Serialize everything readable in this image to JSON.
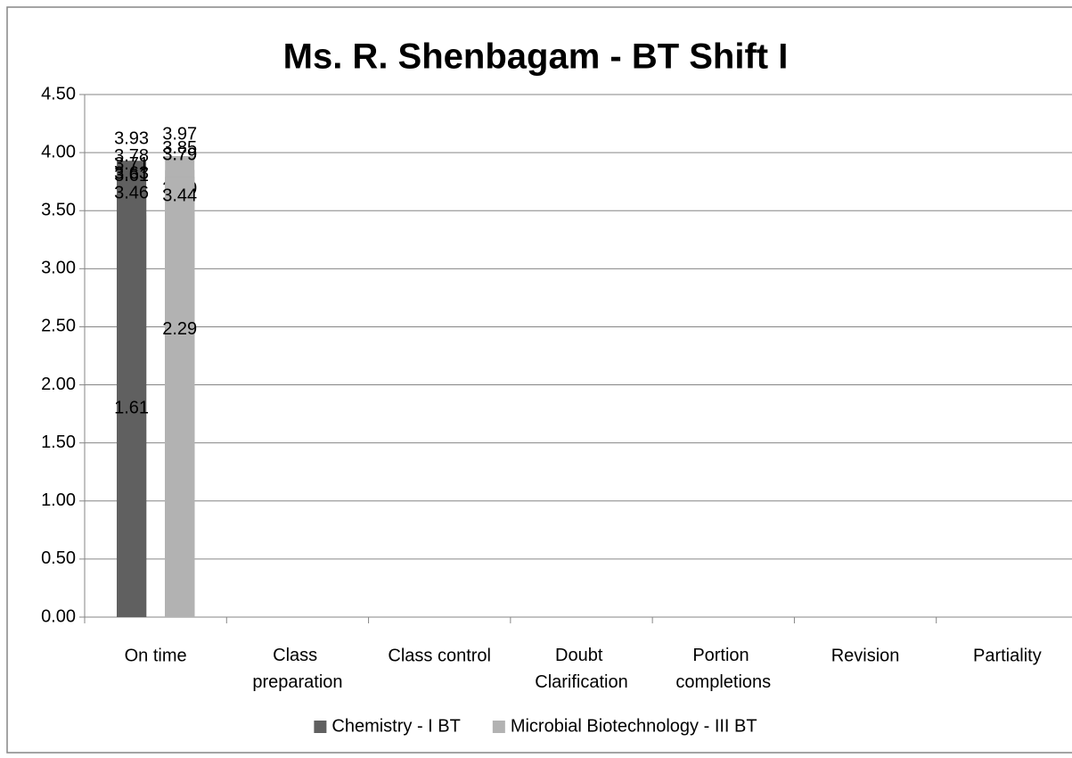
{
  "chart_data": {
    "type": "bar",
    "title": "Ms. R. Shenbagam - BT Shift I",
    "categories": [
      "On time",
      "Class preparation",
      "Class control",
      "Doubt Clarification",
      "Portion completions",
      "Revision",
      "Partiality"
    ],
    "series": [
      {
        "name": "Chemistry - I BT",
        "color": "#606060",
        "values": [
          3.93,
          3.71,
          3.78,
          3.61,
          3.63,
          3.46,
          1.61
        ],
        "value_labels": [
          "3.93",
          "3.71",
          "3.78",
          "3.61",
          "3.63",
          "3.46",
          "1.61"
        ]
      },
      {
        "name": "Microbial Biotechnology - III BT",
        "color": "#b2b2b2",
        "values": [
          3.97,
          3.85,
          3.5,
          3.79,
          3.79,
          3.44,
          2.29
        ],
        "value_labels": [
          "3.97",
          "3.85",
          "3.50",
          "3.79",
          "3.79",
          "3.44",
          "2.29"
        ]
      }
    ],
    "ylim": [
      0,
      4.5
    ],
    "yticks": [
      {
        "value": 0,
        "label": "0.00"
      },
      {
        "value": 0.5,
        "label": "0.50"
      },
      {
        "value": 1,
        "label": "1.00"
      },
      {
        "value": 1.5,
        "label": "1.50"
      },
      {
        "value": 2,
        "label": "2.00"
      },
      {
        "value": 2.5,
        "label": "2.50"
      },
      {
        "value": 3,
        "label": "3.00"
      },
      {
        "value": 3.5,
        "label": "3.50"
      },
      {
        "value": 4,
        "label": "4.00"
      },
      {
        "value": 4.5,
        "label": "4.50"
      }
    ],
    "grid": true,
    "legend": "bottom"
  }
}
